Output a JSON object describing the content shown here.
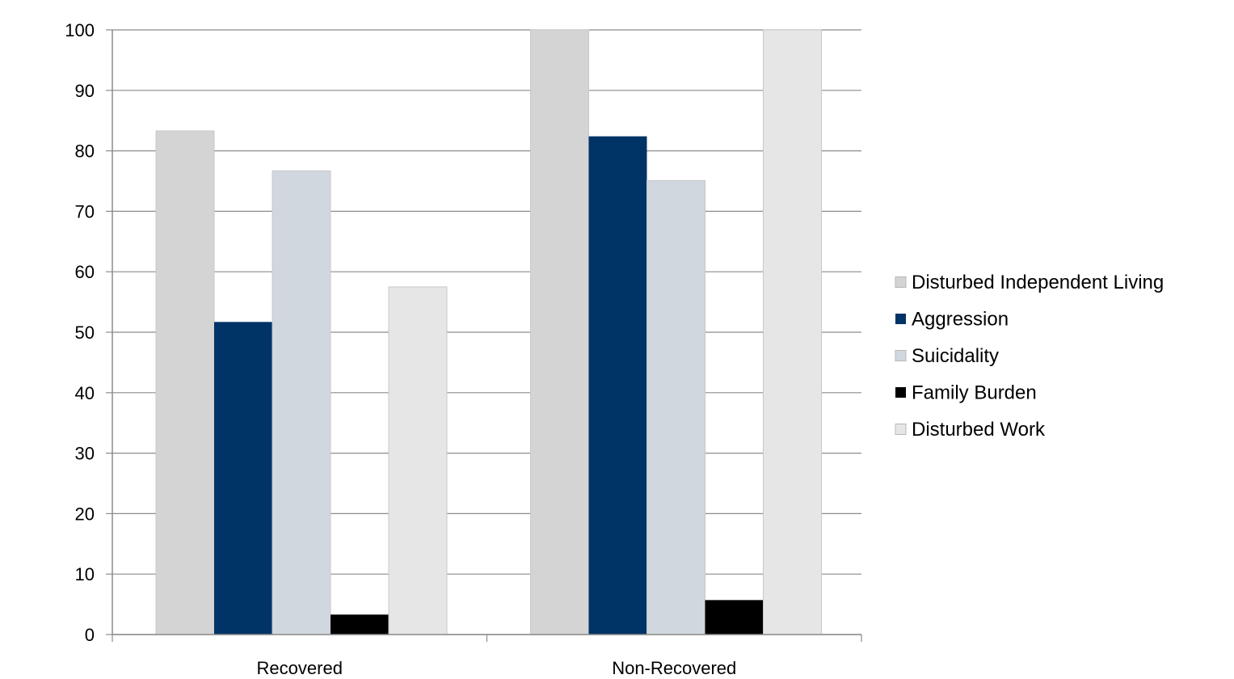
{
  "chart_data": {
    "type": "bar",
    "categories": [
      "Recovered",
      "Non-Recovered"
    ],
    "series": [
      {
        "name": "Disturbed Independent Living",
        "values": [
          83.3,
          100
        ],
        "color": "#d4d4d4"
      },
      {
        "name": "Aggression",
        "values": [
          51.7,
          82.4
        ],
        "color": "#003366"
      },
      {
        "name": "Suicidality",
        "values": [
          76.7,
          75.1
        ],
        "color": "#d0d7df"
      },
      {
        "name": "Family Burden",
        "values": [
          3.3,
          5.7
        ],
        "color": "#000000"
      },
      {
        "name": "Disturbed Work",
        "values": [
          57.5,
          100
        ],
        "color": "#e6e6e6"
      }
    ],
    "title": "",
    "xlabel": "",
    "ylabel": "",
    "ylim": [
      0,
      100
    ],
    "yticks": [
      0,
      10,
      20,
      30,
      40,
      50,
      60,
      70,
      80,
      90,
      100
    ],
    "grid": true,
    "legend_position": "right"
  }
}
